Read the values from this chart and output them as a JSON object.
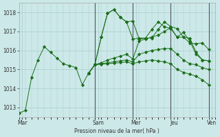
{
  "bg_color": "#cce8e8",
  "grid_color": "#aacccc",
  "line_color": "#1a6e1a",
  "ylabel": "Pression niveau de la mer( hPa )",
  "ylim": [
    1012.5,
    1018.5
  ],
  "yticks": [
    1013,
    1014,
    1015,
    1016,
    1017,
    1018
  ],
  "day_labels": [
    "Mar",
    "Sam",
    "Mer",
    "Jeu",
    "Ven"
  ],
  "day_x": [
    0.5,
    12.5,
    18.5,
    24.5,
    30.5
  ],
  "vline_x": [
    12,
    18,
    24,
    30
  ],
  "series": [
    {
      "x": [
        0,
        1,
        2,
        3,
        4,
        5,
        6,
        7,
        8,
        9,
        10,
        11,
        12,
        13,
        14,
        15,
        16,
        17,
        18,
        19,
        20,
        21,
        22,
        23,
        24,
        25,
        26,
        27,
        28,
        29,
        30
      ],
      "y": [
        1012.7,
        1012.85,
        1014.6,
        1015.5,
        1016.2,
        1015.9,
        1015.6,
        1015.3,
        1015.2,
        1015.1,
        1014.2,
        1014.8,
        1015.25,
        1016.7,
        1017.95,
        1018.15,
        1017.75,
        1017.5,
        1016.6,
        1016.65,
        1016.65,
        1017.1,
        1017.5,
        1017.25,
        1017.15,
        1016.7,
        1016.95,
        1016.5,
        1015.8,
        1015.5,
        1015.45
      ]
    },
    {
      "x": [
        11,
        12,
        13,
        14,
        15,
        16,
        17,
        18,
        19,
        20,
        21,
        22,
        23,
        24,
        25,
        26,
        27,
        28,
        29,
        30
      ],
      "y": [
        1014.8,
        1015.25,
        1016.7,
        1017.95,
        1018.15,
        1017.75,
        1017.5,
        1017.55,
        1016.6,
        1016.65,
        1016.65,
        1017.1,
        1017.5,
        1017.25,
        1017.15,
        1016.7,
        1016.65,
        1015.9,
        1015.5,
        1015.45
      ]
    },
    {
      "x": [
        11,
        12,
        13,
        14,
        15,
        16,
        17,
        18,
        19,
        20,
        21,
        22,
        23,
        24,
        25,
        26,
        27,
        28,
        29,
        30
      ],
      "y": [
        1014.8,
        1015.25,
        1015.35,
        1015.5,
        1015.6,
        1015.7,
        1015.8,
        1015.55,
        1016.5,
        1016.6,
        1016.7,
        1016.8,
        1017.0,
        1017.2,
        1016.7,
        1016.7,
        1016.4,
        1016.35,
        1016.4,
        1016.05
      ]
    },
    {
      "x": [
        11,
        12,
        13,
        14,
        15,
        16,
        17,
        18,
        19,
        20,
        21,
        22,
        23,
        24,
        25,
        26,
        27,
        28,
        29,
        30
      ],
      "y": [
        1014.8,
        1015.25,
        1015.3,
        1015.35,
        1015.4,
        1015.45,
        1015.5,
        1015.4,
        1015.8,
        1015.9,
        1016.0,
        1016.05,
        1016.1,
        1016.1,
        1015.8,
        1015.5,
        1015.3,
        1015.25,
        1015.1,
        1015.0
      ]
    },
    {
      "x": [
        11,
        12,
        13,
        14,
        15,
        16,
        17,
        18,
        19,
        20,
        21,
        22,
        23,
        24,
        25,
        26,
        27,
        28,
        29,
        30
      ],
      "y": [
        1014.8,
        1015.25,
        1015.28,
        1015.3,
        1015.33,
        1015.36,
        1015.4,
        1015.3,
        1015.4,
        1015.45,
        1015.5,
        1015.45,
        1015.4,
        1015.3,
        1015.0,
        1014.85,
        1014.75,
        1014.65,
        1014.45,
        1014.2
      ]
    }
  ],
  "n_points": 31
}
